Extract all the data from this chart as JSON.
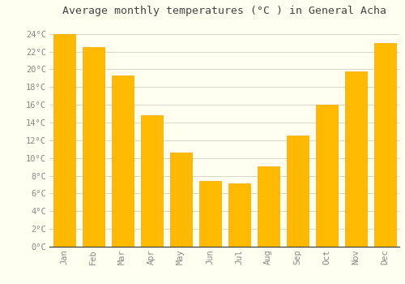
{
  "title": "Average monthly temperatures (°C ) in General Acha",
  "months": [
    "Jan",
    "Feb",
    "Mar",
    "Apr",
    "May",
    "Jun",
    "Jul",
    "Aug",
    "Sep",
    "Oct",
    "Nov",
    "Dec"
  ],
  "values": [
    24.0,
    22.5,
    19.3,
    14.8,
    10.6,
    7.4,
    7.1,
    9.1,
    12.5,
    16.0,
    19.8,
    23.0
  ],
  "bar_color": "#FFBA00",
  "bar_edge_color": "#F5A800",
  "background_color": "#FFFFF0",
  "grid_color": "#D8D8C8",
  "title_color": "#444444",
  "label_color": "#888888",
  "axis_color": "#AAAAAA",
  "ylim": [
    0,
    25.5
  ],
  "yticks": [
    0,
    2,
    4,
    6,
    8,
    10,
    12,
    14,
    16,
    18,
    20,
    22,
    24
  ],
  "ytick_labels": [
    "0°C",
    "2°C",
    "4°C",
    "6°C",
    "8°C",
    "10°C",
    "12°C",
    "14°C",
    "16°C",
    "18°C",
    "20°C",
    "22°C",
    "24°C"
  ],
  "title_fontsize": 9.5,
  "tick_fontsize": 7.5,
  "bar_width": 0.75,
  "font_family": "monospace"
}
